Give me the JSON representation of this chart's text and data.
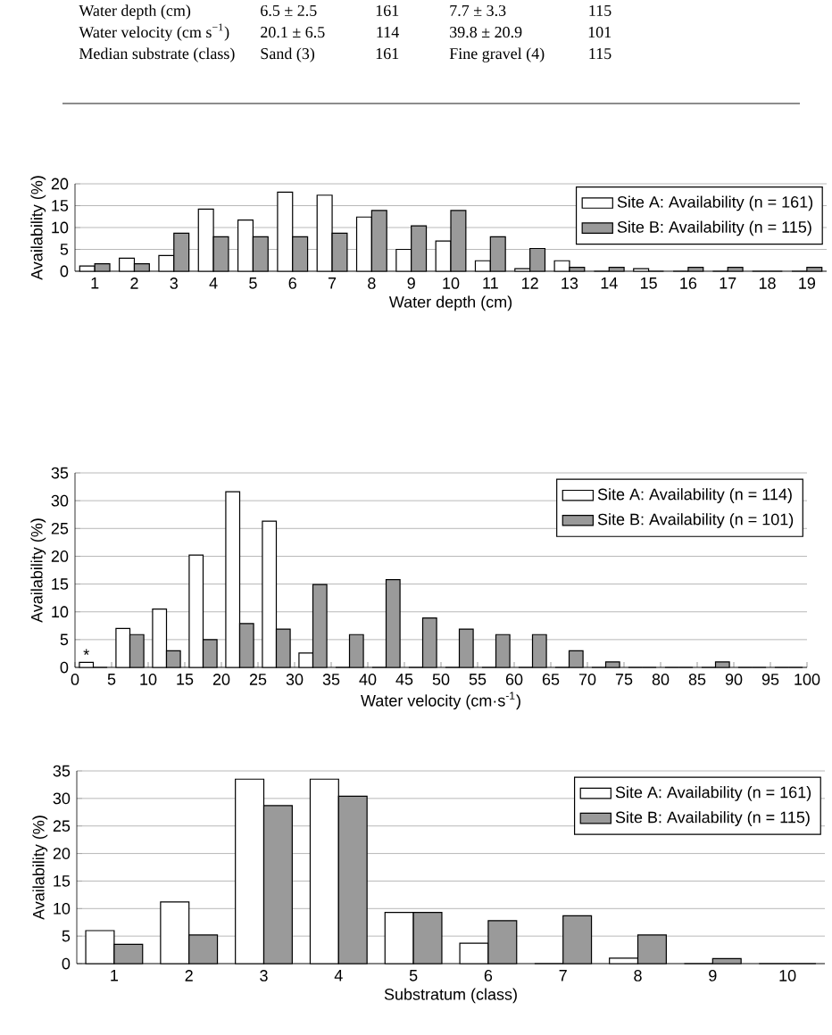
{
  "chart_data": [
    {
      "type": "other",
      "annotations": [
        "Water depth (cm)",
        "6.5 ± 2.5",
        "161",
        "7.7 ±  3.3",
        "115",
        "Water velocity (cm s$^{−1}$)",
        "20.1 ± 6.5",
        "114",
        "39.8 ± 20.9",
        "101",
        "Median substrate (class)",
        "Sand (3)",
        "161",
        "Fine gravel (4)",
        "115"
      ]
    },
    {
      "type": "bar",
      "xlabel": "Water depth (cm)",
      "ylabel": "Availability (%)",
      "categories": [
        "1",
        "2",
        "3",
        "4",
        "5",
        "6",
        "7",
        "8",
        "9",
        "10",
        "11",
        "12",
        "13",
        "14",
        "15",
        "16",
        "17",
        "18",
        "19"
      ],
      "series": [
        {
          "name": "Site A: Availability (n = 161)",
          "color": "#ffffff",
          "values": [
            1.2,
            3.0,
            3.6,
            14.2,
            11.7,
            18.1,
            17.4,
            12.4,
            5.0,
            6.9,
            2.4,
            0.6,
            2.4,
            0,
            0.6,
            0,
            0,
            0,
            0
          ]
        },
        {
          "name": "Site B: Availability (n = 115)",
          "color": "#9a9a9a",
          "values": [
            1.7,
            1.7,
            8.7,
            7.9,
            7.9,
            7.9,
            8.7,
            13.9,
            10.4,
            13.9,
            7.9,
            5.2,
            0.9,
            0.9,
            0,
            0.9,
            0.9,
            0,
            0.9
          ]
        }
      ],
      "ylim": [
        0,
        20
      ],
      "yticks": [
        0,
        5,
        10,
        15,
        20
      ],
      "grid": "y",
      "legend": "top right"
    },
    {
      "type": "bar",
      "xlabel": "Water velocity (cm·s$^{-1}$)",
      "ylabel": "Availability (%)",
      "x": [
        2.5,
        7.5,
        12.5,
        17.5,
        22.5,
        27.5,
        32.5,
        37.5,
        42.5,
        47.5,
        52.5,
        57.5,
        62.5,
        67.5,
        72.5,
        77.5,
        82.5,
        87.5,
        92.5,
        97.5
      ],
      "series": [
        {
          "name": "Site A: Availability (n = 114)",
          "color": "#ffffff",
          "values": [
            0.9,
            7.0,
            10.5,
            20.2,
            31.6,
            26.3,
            2.6,
            0,
            0,
            0,
            0,
            0,
            0,
            0,
            0,
            0,
            0,
            0,
            0,
            0
          ]
        },
        {
          "name": "Site B: Availability (n = 101)",
          "color": "#9a9a9a",
          "values": [
            0,
            5.9,
            3.0,
            5.0,
            7.9,
            6.9,
            14.9,
            5.9,
            15.8,
            8.9,
            6.9,
            5.9,
            5.9,
            3.0,
            1.0,
            0,
            0,
            1.0,
            0,
            0
          ]
        }
      ],
      "xlim": [
        0,
        100
      ],
      "xticks": [
        0,
        5,
        10,
        15,
        20,
        25,
        30,
        35,
        40,
        45,
        50,
        55,
        60,
        65,
        70,
        75,
        80,
        85,
        90,
        95,
        100
      ],
      "ylim": [
        0,
        35
      ],
      "yticks": [
        0,
        5,
        10,
        15,
        20,
        25,
        30,
        35
      ],
      "grid": "y",
      "legend": "top right",
      "annotations": [
        {
          "text": "*",
          "x": 2.5,
          "y": 0.9
        }
      ]
    },
    {
      "type": "bar",
      "xlabel": "Substratum (class)",
      "ylabel": "Availability (%)",
      "categories": [
        "1",
        "2",
        "3",
        "4",
        "5",
        "6",
        "7",
        "8",
        "9",
        "10"
      ],
      "series": [
        {
          "name": "Site A: Availability (n = 161)",
          "color": "#ffffff",
          "values": [
            6.0,
            11.2,
            33.5,
            33.5,
            9.3,
            3.7,
            0,
            1.0,
            0,
            0
          ]
        },
        {
          "name": "Site B: Availability (n = 115)",
          "color": "#9a9a9a",
          "values": [
            3.5,
            5.2,
            28.7,
            30.4,
            9.3,
            7.8,
            8.7,
            5.2,
            0.9,
            0
          ]
        }
      ],
      "ylim": [
        0,
        35
      ],
      "yticks": [
        0,
        5,
        10,
        15,
        20,
        25,
        30,
        35
      ],
      "grid": "y",
      "legend": "top right"
    }
  ]
}
